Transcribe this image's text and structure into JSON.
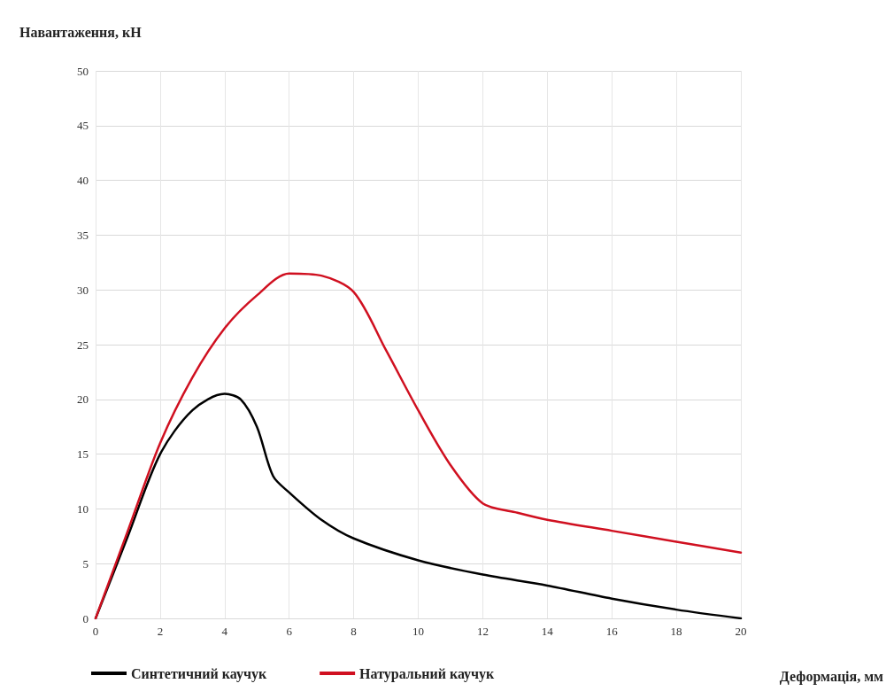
{
  "chart_data": {
    "type": "line",
    "ylabel": "Навантаження, кН",
    "xlabel": "Деформація, мм",
    "xlim": [
      0,
      20
    ],
    "xticks": [
      0,
      2,
      4,
      6,
      8,
      10,
      12,
      14,
      16,
      18,
      20
    ],
    "ylim": [
      0,
      50
    ],
    "yticks": [
      0,
      5,
      10,
      15,
      20,
      25,
      30,
      35,
      40,
      45,
      50
    ],
    "grid": true,
    "legend": "bottom left",
    "marker": "none",
    "line_style": "solid",
    "series": [
      {
        "name": "Синтетичний каучук",
        "color": "#000000",
        "x": [
          0,
          1,
          2,
          3,
          4,
          4.5,
          5,
          5.5,
          6,
          7,
          8,
          10,
          12,
          14,
          16,
          18,
          20
        ],
        "values": [
          0,
          7.5,
          15,
          19,
          20.5,
          20,
          17.5,
          13,
          11.5,
          9,
          7.3,
          5.3,
          4,
          3,
          1.8,
          0.8,
          0
        ]
      },
      {
        "name": "Натуральний каучук",
        "color": "#d01020",
        "x": [
          0,
          1,
          2,
          3,
          4,
          5,
          6,
          7,
          8,
          9,
          10,
          11,
          12,
          13,
          14,
          16,
          18,
          20
        ],
        "values": [
          0,
          8,
          16,
          22,
          26.5,
          29.5,
          31.5,
          31.3,
          29.8,
          24.5,
          19,
          14,
          10.5,
          9.7,
          9,
          8,
          7,
          6
        ]
      }
    ]
  }
}
